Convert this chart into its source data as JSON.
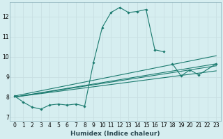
{
  "xlabel": "Humidex (Indice chaleur)",
  "bg_color": "#d6eef0",
  "grid_color": "#c8dfe2",
  "line_color": "#1a7a6e",
  "xlim": [
    -0.5,
    23.5
  ],
  "ylim": [
    6.8,
    12.7
  ],
  "yticks": [
    7,
    8,
    9,
    10,
    11,
    12
  ],
  "xticks": [
    0,
    1,
    2,
    3,
    4,
    5,
    6,
    7,
    8,
    9,
    10,
    11,
    12,
    13,
    14,
    15,
    16,
    17,
    18,
    19,
    20,
    21,
    22,
    23
  ],
  "curves": [
    {
      "x": [
        0,
        1,
        2,
        3,
        4,
        5,
        6,
        7,
        8,
        9,
        10,
        11,
        12,
        13,
        14,
        15,
        16,
        17
      ],
      "y": [
        8.05,
        7.75,
        7.5,
        7.4,
        7.6,
        7.65,
        7.6,
        7.65,
        7.55,
        9.7,
        11.45,
        12.2,
        12.45,
        12.2,
        12.25,
        12.35,
        10.35,
        10.25
      ],
      "marker": true
    },
    {
      "x": [
        0,
        23
      ],
      "y": [
        8.0,
        9.3
      ],
      "marker": false
    },
    {
      "x": [
        0,
        23
      ],
      "y": [
        8.0,
        9.55
      ],
      "marker": false
    },
    {
      "x": [
        0,
        23
      ],
      "y": [
        8.0,
        9.65
      ],
      "marker": false
    },
    {
      "x": [
        0,
        23
      ],
      "y": [
        8.05,
        10.05
      ],
      "marker": false
    },
    {
      "x": [
        18,
        19,
        20,
        21,
        23
      ],
      "y": [
        9.65,
        9.05,
        9.35,
        9.1,
        9.65
      ],
      "marker": true
    }
  ]
}
